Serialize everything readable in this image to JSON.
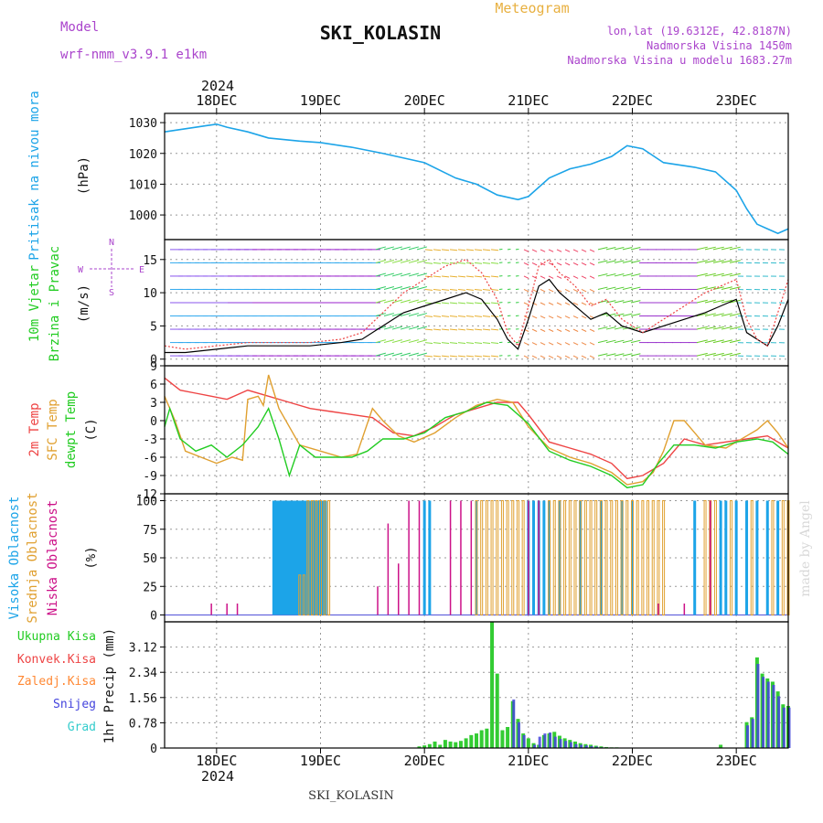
{
  "header": {
    "model_label": "Model",
    "model_name": "wrf-nmm_v3.9.1 e1km",
    "title": "SKI_KOLASIN",
    "subtitle": "Meteogram",
    "lonlat": "lon,lat (19.6312E, 42.8187N)",
    "elevation": "Nadmorska Visina 1450m",
    "model_elevation": "Nadmorska Visina u modelu 1683.27m",
    "footer_title": "SKI_KOLASIN",
    "watermark": "made by Angel"
  },
  "colors": {
    "pressure": "#1ca4e8",
    "temp2m": "#ee4444",
    "sfc_temp": "#e0a030",
    "dewpoint": "#22cc22",
    "high_cloud": "#1ca4e8",
    "mid_cloud": "#e0a030",
    "low_cloud": "#cc1188",
    "total_precip": "#33cc33",
    "conv_precip": "#ee4444",
    "frz_precip": "#ff8833",
    "snow": "#4444dd",
    "graupel": "#33cccc",
    "wind_speed": "#000000",
    "wind_gust": "#ee4444",
    "title_purple": "#aa44cc",
    "subtitle_orange": "#e8b040"
  },
  "chart_data": [
    {
      "type": "line",
      "panel": "pressure",
      "ylabel_left": "Pritisak na nivou mora",
      "ylabel_unit": "(hPa)",
      "y_ticks": [
        "1030",
        "1020",
        "1010",
        "1000"
      ],
      "ylim": [
        992,
        1033
      ],
      "x_labels_top": [
        "18DEC",
        "19DEC",
        "20DEC",
        "21DEC",
        "22DEC",
        "23DEC"
      ],
      "x_year_top": "2024",
      "x_day_values": [
        0,
        1,
        2,
        3,
        4,
        5
      ],
      "xlim": [
        -0.5,
        5.5
      ],
      "x": [
        -0.5,
        -0.3,
        -0.1,
        0.0,
        0.1,
        0.3,
        0.5,
        0.8,
        1.0,
        1.3,
        1.6,
        2.0,
        2.3,
        2.5,
        2.7,
        2.9,
        3.0,
        3.2,
        3.4,
        3.6,
        3.8,
        3.95,
        4.1,
        4.3,
        4.6,
        4.8,
        5.0,
        5.1,
        5.2,
        5.3,
        5.4,
        5.5
      ],
      "y": [
        1027,
        1028,
        1029,
        1029.5,
        1028.5,
        1027,
        1025,
        1024,
        1023.5,
        1022,
        1020,
        1017,
        1012,
        1010,
        1006.5,
        1005,
        1006,
        1012,
        1015,
        1016.5,
        1019,
        1022.5,
        1021.5,
        1017,
        1015.5,
        1014,
        1008,
        1002,
        997,
        995.5,
        994,
        995.5
      ]
    },
    {
      "type": "line",
      "panel": "wind",
      "ylabel_left": "10m Vjetar",
      "ylabel_left2": "Brzina i Pravac",
      "ylabel_unit": "(m/s)",
      "compass": {
        "n": "N",
        "s": "S",
        "e": "E",
        "w": "W"
      },
      "y_ticks": [
        "15",
        "10",
        "5",
        "0"
      ],
      "ylim": [
        -1,
        18
      ],
      "series": [
        {
          "name": "speed",
          "x": [
            -0.5,
            -0.3,
            0,
            0.3,
            0.6,
            0.9,
            1.2,
            1.4,
            1.6,
            1.8,
            2.0,
            2.2,
            2.4,
            2.55,
            2.7,
            2.8,
            2.9,
            3.0,
            3.1,
            3.2,
            3.3,
            3.45,
            3.6,
            3.75,
            3.9,
            4.1,
            4.3,
            4.5,
            4.7,
            4.85,
            5.0,
            5.1,
            5.2,
            5.3,
            5.4,
            5.5
          ],
          "y": [
            1,
            1,
            1.5,
            2,
            2,
            2,
            2.5,
            3,
            5,
            7,
            8,
            9,
            10,
            9,
            6,
            3,
            1.5,
            6,
            11,
            12,
            10,
            8,
            6,
            7,
            5,
            4,
            5,
            6,
            7,
            8,
            9,
            4,
            3,
            2,
            5,
            9
          ]
        },
        {
          "name": "gusts",
          "x": [
            -0.5,
            -0.3,
            0,
            0.3,
            0.6,
            0.9,
            1.2,
            1.4,
            1.6,
            1.8,
            2.0,
            2.2,
            2.4,
            2.55,
            2.7,
            2.8,
            2.9,
            3.0,
            3.1,
            3.2,
            3.3,
            3.45,
            3.6,
            3.75,
            3.9,
            4.1,
            4.3,
            4.5,
            4.7,
            4.85,
            5.0,
            5.1,
            5.2,
            5.3,
            5.4,
            5.5
          ],
          "y": [
            2,
            1.5,
            2,
            2.5,
            2.5,
            2.5,
            3,
            4,
            7,
            10,
            12,
            14,
            15,
            13,
            9,
            4,
            2,
            8,
            14,
            15,
            13,
            11,
            8,
            9,
            6,
            4,
            6,
            8,
            10,
            11,
            12,
            6,
            3,
            2,
            7,
            12
          ]
        }
      ]
    },
    {
      "type": "line",
      "panel": "temperature",
      "ylabel_left": "2m Temp",
      "ylabel_left2": "SFC Temp",
      "ylabel_left3": "dewpt Temp",
      "ylabel_unit": "(C)",
      "y_ticks": [
        "9",
        "6",
        "3",
        "0",
        "-3",
        "-6",
        "-9",
        "-12"
      ],
      "ylim": [
        -12,
        9
      ],
      "series": [
        {
          "name": "2m Temp",
          "x": [
            -0.5,
            -0.35,
            -0.2,
            -0.05,
            0.1,
            0.3,
            0.5,
            0.7,
            0.9,
            1.1,
            1.3,
            1.5,
            1.7,
            1.9,
            2.1,
            2.3,
            2.5,
            2.7,
            2.9,
            3.0,
            3.2,
            3.4,
            3.6,
            3.8,
            3.95,
            4.1,
            4.3,
            4.5,
            4.7,
            4.9,
            5.1,
            5.3,
            5.5
          ],
          "y": [
            7,
            5,
            4.5,
            4,
            3.5,
            5,
            4,
            3,
            2,
            1.5,
            1,
            0.5,
            -2,
            -2.5,
            -1,
            1,
            2,
            3,
            3,
            1,
            -3.5,
            -4.5,
            -5.5,
            -7,
            -9.5,
            -9,
            -7,
            -3,
            -4,
            -3.5,
            -3,
            -2.5,
            -4.5
          ]
        },
        {
          "name": "SFC Temp",
          "x": [
            -0.5,
            -0.4,
            -0.3,
            -0.15,
            0.0,
            0.15,
            0.25,
            0.3,
            0.4,
            0.45,
            0.5,
            0.6,
            0.8,
            1.0,
            1.2,
            1.35,
            1.5,
            1.6,
            1.75,
            1.9,
            2.1,
            2.3,
            2.5,
            2.7,
            2.85,
            3.0,
            3.2,
            3.4,
            3.6,
            3.8,
            3.95,
            4.1,
            4.2,
            4.3,
            4.4,
            4.5,
            4.6,
            4.7,
            4.9,
            5.1,
            5.2,
            5.3,
            5.4,
            5.5
          ],
          "y": [
            4,
            0,
            -5,
            -6,
            -7,
            -6,
            -6.5,
            3.5,
            4,
            2.5,
            7.5,
            2,
            -4,
            -5,
            -6,
            -5.5,
            2,
            0,
            -2.5,
            -3.5,
            -2,
            0.5,
            2.5,
            3.5,
            3,
            -1,
            -4.5,
            -6,
            -7,
            -8.5,
            -10.5,
            -10,
            -8.5,
            -5,
            0,
            0,
            -2,
            -4,
            -4.5,
            -2.5,
            -1.5,
            0,
            -2,
            -4.5
          ]
        },
        {
          "name": "dewpt Temp",
          "x": [
            -0.5,
            -0.45,
            -0.35,
            -0.2,
            -0.05,
            0.1,
            0.25,
            0.4,
            0.5,
            0.6,
            0.7,
            0.8,
            0.95,
            1.1,
            1.3,
            1.45,
            1.6,
            1.8,
            2.0,
            2.2,
            2.4,
            2.6,
            2.8,
            3.0,
            3.2,
            3.4,
            3.6,
            3.8,
            3.95,
            4.1,
            4.25,
            4.4,
            4.6,
            4.8,
            5.0,
            5.2,
            5.35,
            5.5
          ],
          "y": [
            -1,
            2,
            -3,
            -5,
            -4,
            -6,
            -4,
            -1,
            2,
            -3,
            -9,
            -4,
            -6,
            -6,
            -6,
            -5,
            -3,
            -3,
            -2,
            0.5,
            1.5,
            3,
            2.5,
            -0.5,
            -5,
            -6.5,
            -7.5,
            -9,
            -11,
            -10.5,
            -7,
            -4,
            -4,
            -4.5,
            -3.5,
            -3,
            -3.5,
            -5.5
          ]
        }
      ]
    },
    {
      "type": "bar",
      "panel": "cloud",
      "ylabel_left": "Visoka Oblacnost",
      "ylabel_left2": "Srednja Oblacnost",
      "ylabel_left3": "Niska Oblacnost",
      "ylabel_unit": "(%)",
      "y_ticks": [
        "100",
        "75",
        "50",
        "25",
        "0"
      ],
      "ylim": [
        0,
        100
      ],
      "series": [
        {
          "name": "high",
          "x": [
            0.55,
            0.57,
            0.59,
            0.61,
            0.63,
            0.65,
            0.67,
            0.69,
            0.71,
            0.73,
            0.75,
            0.77,
            0.79,
            0.81,
            0.83,
            0.85,
            0.87,
            0.89,
            0.91,
            0.93,
            0.95,
            0.97,
            0.99,
            1.01,
            1.03,
            1.05,
            2.0,
            2.05,
            2.5,
            3.0,
            3.05,
            3.1,
            3.15,
            3.2,
            3.3,
            3.5,
            3.7,
            3.9,
            4.0,
            4.6,
            4.85,
            4.9,
            5.0,
            5.1,
            5.2,
            5.3,
            5.4
          ],
          "values": [
            100,
            100,
            100,
            100,
            100,
            100,
            100,
            100,
            100,
            100,
            100,
            100,
            100,
            100,
            100,
            100,
            100,
            100,
            100,
            100,
            100,
            100,
            100,
            100,
            100,
            100,
            100,
            100,
            100,
            100,
            100,
            100,
            100,
            100,
            100,
            100,
            100,
            100,
            100,
            100,
            100,
            100,
            100,
            100,
            100,
            100,
            100
          ]
        },
        {
          "name": "mid",
          "x": [
            0.8,
            0.84,
            0.88,
            0.92,
            0.96,
            1.0,
            1.04,
            1.08,
            2.5,
            2.55,
            2.6,
            2.65,
            2.7,
            2.75,
            2.8,
            2.85,
            2.9,
            2.95,
            3.2,
            3.25,
            3.3,
            3.35,
            3.4,
            3.45,
            3.5,
            3.55,
            3.6,
            3.65,
            3.7,
            3.75,
            3.8,
            3.85,
            3.9,
            3.95,
            4.0,
            4.05,
            4.1,
            4.15,
            4.2,
            4.25,
            4.3,
            4.7,
            4.75,
            4.8,
            4.95,
            5.15,
            5.35,
            5.45,
            5.5
          ],
          "values": [
            35,
            35,
            100,
            100,
            100,
            100,
            100,
            100,
            100,
            100,
            100,
            100,
            100,
            100,
            100,
            100,
            100,
            100,
            100,
            100,
            100,
            100,
            100,
            100,
            100,
            100,
            100,
            100,
            100,
            100,
            100,
            100,
            100,
            100,
            100,
            100,
            100,
            100,
            100,
            100,
            100,
            100,
            100,
            100,
            100,
            100,
            100,
            100,
            100
          ]
        },
        {
          "name": "low",
          "x": [
            -0.05,
            0.1,
            0.2,
            1.55,
            1.65,
            1.75,
            1.85,
            1.95,
            2.25,
            2.35,
            2.45,
            3.0,
            3.1,
            4.25,
            4.5,
            4.75
          ],
          "values": [
            10,
            10,
            10,
            25,
            80,
            45,
            100,
            100,
            100,
            100,
            100,
            100,
            100,
            10,
            10,
            100
          ]
        }
      ]
    },
    {
      "type": "bar",
      "panel": "precip",
      "legend": [
        "Ukupna Kisa",
        "Konvek.Kisa",
        "Zaledj.Kisa",
        "Snijeg",
        "Grad"
      ],
      "ylabel_unit": "1hr Precip (mm)",
      "y_ticks": [
        "3.12",
        "2.34",
        "1.56",
        "0.78",
        "0"
      ],
      "ylim": [
        0,
        3.9
      ],
      "x_labels_bottom": [
        "18DEC",
        "19DEC",
        "20DEC",
        "21DEC",
        "22DEC",
        "23DEC"
      ],
      "x_year_bottom": "2024",
      "series": [
        {
          "name": "Ukupna Kisa",
          "x": [
            1.95,
            2.0,
            2.05,
            2.1,
            2.15,
            2.2,
            2.25,
            2.3,
            2.35,
            2.4,
            2.45,
            2.5,
            2.55,
            2.6,
            2.65,
            2.7,
            2.75,
            2.8,
            2.85,
            2.9,
            2.95,
            3.0,
            3.05,
            3.1,
            3.15,
            3.2,
            3.25,
            3.3,
            3.35,
            3.4,
            3.45,
            3.5,
            3.55,
            3.6,
            3.65,
            3.7,
            3.75,
            3.8,
            3.85,
            3.9,
            3.95,
            4.85,
            5.1,
            5.15,
            5.2,
            5.25,
            5.3,
            5.35,
            5.4,
            5.45,
            5.5
          ],
          "values": [
            0.05,
            0.08,
            0.12,
            0.2,
            0.1,
            0.25,
            0.2,
            0.18,
            0.22,
            0.3,
            0.4,
            0.45,
            0.55,
            0.6,
            3.9,
            2.3,
            0.55,
            0.65,
            1.45,
            0.9,
            0.45,
            0.3,
            0.15,
            0.1,
            0.4,
            0.45,
            0.5,
            0.38,
            0.3,
            0.25,
            0.2,
            0.15,
            0.12,
            0.1,
            0.07,
            0.05,
            0.03,
            0.02,
            0.02,
            0.01,
            0.01,
            0.1,
            0.8,
            0.95,
            2.8,
            2.3,
            2.15,
            2.05,
            1.75,
            1.35,
            1.3
          ]
        },
        {
          "name": "Snijeg",
          "x": [
            2.85,
            2.9,
            2.95,
            3.05,
            3.1,
            3.15,
            3.2,
            3.25,
            3.3,
            3.35,
            3.4,
            3.45,
            3.5,
            3.55,
            3.6,
            3.65,
            3.7,
            5.1,
            5.15,
            5.2,
            5.25,
            5.3,
            5.35,
            5.4,
            5.45,
            5.5
          ],
          "values": [
            1.5,
            0.8,
            0.4,
            0.1,
            0.35,
            0.45,
            0.48,
            0.35,
            0.28,
            0.22,
            0.18,
            0.12,
            0.1,
            0.08,
            0.06,
            0.04,
            0.02,
            0.7,
            0.9,
            2.6,
            2.2,
            2.05,
            1.95,
            1.6,
            1.25,
            1.25
          ]
        }
      ]
    }
  ]
}
